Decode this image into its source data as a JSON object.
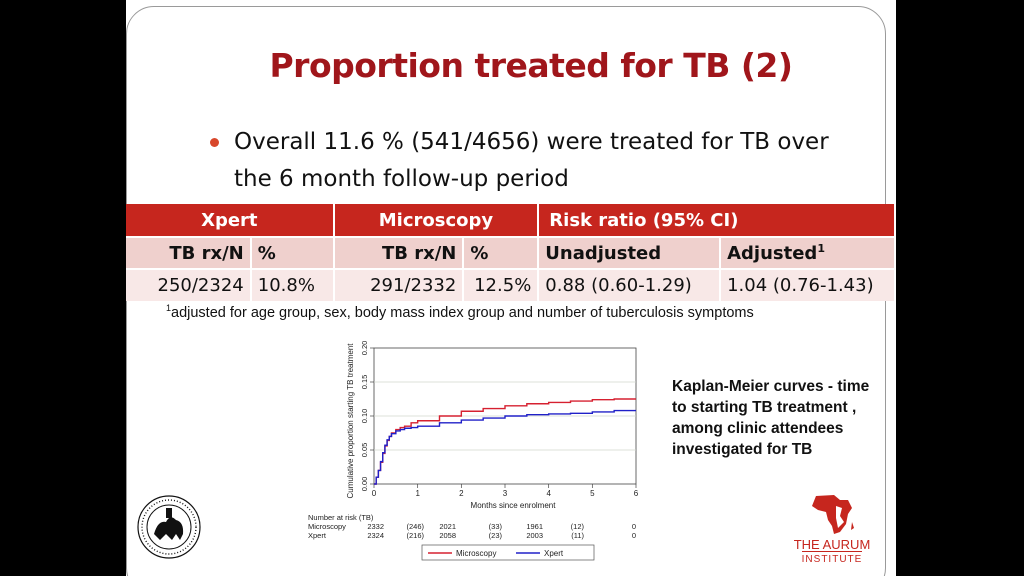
{
  "slide": {
    "title": "Proportion treated for TB (2)",
    "bullet": "Overall 11.6 % (541/4656)  were treated for TB over the 6 month follow-up period",
    "table": {
      "groups": [
        "Xpert",
        "Microscopy",
        "Risk ratio (95% CI)"
      ],
      "subheaders": {
        "xpert_tbrx": "TB rx/N",
        "xpert_pct": "%",
        "micro_tbrx": "TB rx/N",
        "micro_pct": "%",
        "unadjusted": "Unadjusted",
        "adjusted": "Adjusted",
        "adjusted_sup": "1"
      },
      "row": {
        "xpert_tbrx": "250/2324",
        "xpert_pct": "10.8%",
        "micro_tbrx": "291/2332",
        "micro_pct": "12.5%",
        "unadjusted": "0.88 (0.60-1.29)",
        "adjusted": "1.04 (0.76-1.43)"
      }
    },
    "footnote_sup": "1",
    "footnote": "adjusted for age group, sex, body mass index group and number of tuberculosis symptoms",
    "caption": "Kaplan-Meier curves - time to starting TB treatment , among clinic attendees investigated for TB",
    "aurum_line1": "THE AURUM",
    "aurum_line2": "INSTITUTE",
    "colors": {
      "accent": "#a0161b",
      "header": "#c6261e",
      "subheader": "#efd0cd",
      "row": "#f8e8e7"
    }
  },
  "chart_data": {
    "type": "line",
    "title": "",
    "xlabel": "Months since enrolment",
    "ylabel": "Cumulative proportion starting TB treatment",
    "xlim": [
      0,
      6
    ],
    "ylim": [
      0,
      0.2
    ],
    "xticks": [
      "0",
      "1",
      "2",
      "3",
      "4",
      "5",
      "6"
    ],
    "yticks": [
      "0.00",
      "0.05",
      "0.10",
      "0.15",
      "0.20"
    ],
    "series": [
      {
        "name": "Microscopy",
        "color": "#d62030",
        "x": [
          0,
          0.05,
          0.1,
          0.15,
          0.2,
          0.25,
          0.3,
          0.35,
          0.4,
          0.5,
          0.6,
          0.7,
          0.85,
          1.0,
          1.5,
          2.0,
          2.5,
          3.0,
          3.5,
          4.0,
          4.5,
          5.0,
          5.5,
          6.0
        ],
        "y": [
          0,
          0.01,
          0.02,
          0.032,
          0.045,
          0.056,
          0.064,
          0.07,
          0.075,
          0.08,
          0.083,
          0.085,
          0.09,
          0.093,
          0.1,
          0.107,
          0.111,
          0.115,
          0.118,
          0.12,
          0.122,
          0.124,
          0.125,
          0.125
        ]
      },
      {
        "name": "Xpert",
        "color": "#2020c8",
        "x": [
          0,
          0.05,
          0.1,
          0.15,
          0.2,
          0.25,
          0.3,
          0.35,
          0.4,
          0.5,
          0.6,
          0.7,
          0.85,
          1.0,
          1.5,
          2.0,
          2.5,
          3.0,
          3.5,
          4.0,
          4.5,
          5.0,
          5.5,
          6.0
        ],
        "y": [
          0,
          0.01,
          0.02,
          0.033,
          0.046,
          0.057,
          0.065,
          0.07,
          0.074,
          0.078,
          0.08,
          0.082,
          0.083,
          0.085,
          0.09,
          0.094,
          0.097,
          0.1,
          0.102,
          0.103,
          0.104,
          0.106,
          0.108,
          0.108
        ]
      }
    ],
    "risk_table": {
      "title": "Number at risk (TB)",
      "rows": [
        {
          "label": "Microscopy",
          "cells": [
            "2332",
            "(246)",
            "2021",
            "(33)",
            "1961",
            "(12)",
            "0"
          ]
        },
        {
          "label": "Xpert",
          "cells": [
            "2324",
            "(216)",
            "2058",
            "(23)",
            "2003",
            "(11)",
            "0"
          ]
        }
      ]
    },
    "legend": [
      "Microscopy",
      "Xpert"
    ]
  }
}
